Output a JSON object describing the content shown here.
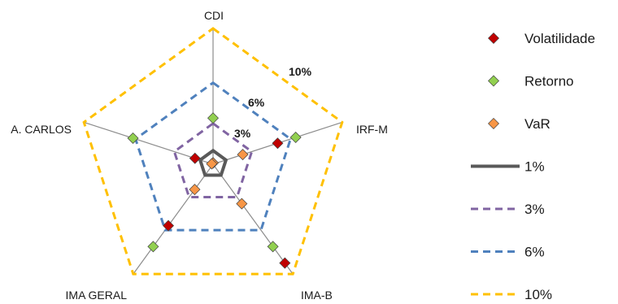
{
  "chart_data": {
    "type": "radar",
    "axes": [
      "CDI",
      "IRF-M",
      "IMA-B",
      "IMA GERAL",
      "A. CARLOS"
    ],
    "ring_labels": [
      "3%",
      "6%",
      "10%"
    ],
    "grid_max": 10,
    "series": [
      {
        "name": "Volatilidade",
        "style": "marker",
        "marker": "diamond",
        "color": "#c00000",
        "values": [
          0.1,
          5.0,
          9.0,
          5.6,
          1.4
        ]
      },
      {
        "name": "Retorno",
        "style": "marker",
        "marker": "diamond",
        "color": "#92d050",
        "values": [
          3.4,
          6.4,
          7.5,
          7.5,
          6.2
        ]
      },
      {
        "name": "VaR",
        "style": "marker",
        "marker": "diamond",
        "color": "#f79646",
        "values": [
          0.1,
          2.3,
          3.6,
          2.3,
          0.1
        ]
      },
      {
        "name": "1%",
        "style": "line",
        "color": "#595959",
        "dash": "",
        "width": 4,
        "values": [
          1,
          1,
          1,
          1,
          1
        ]
      },
      {
        "name": "3%",
        "style": "line",
        "color": "#8064a2",
        "dash": "9 6",
        "width": 3,
        "values": [
          3,
          3,
          3,
          3,
          3
        ]
      },
      {
        "name": "6%",
        "style": "line",
        "color": "#4f81bd",
        "dash": "9 6",
        "width": 3,
        "values": [
          6,
          6,
          6,
          6,
          6
        ]
      },
      {
        "name": "10%",
        "style": "line",
        "color": "#ffc000",
        "dash": "9 6",
        "width": 3,
        "values": [
          10,
          10,
          10,
          10,
          10
        ]
      }
    ],
    "legend_position": "right"
  }
}
